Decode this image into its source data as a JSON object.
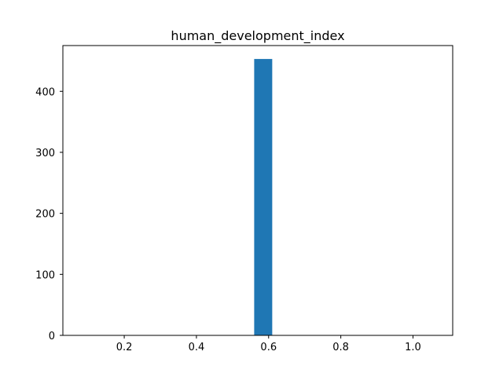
{
  "chart_data": {
    "type": "bar",
    "title": "human_development_index",
    "xlabel": "",
    "ylabel": "",
    "bins": [
      {
        "x0": 0.56,
        "x1": 0.61,
        "value": 453
      }
    ],
    "xlim": [
      0.03,
      1.11
    ],
    "ylim": [
      0,
      475
    ],
    "x_ticks": [
      0.2,
      0.4,
      0.6,
      0.8,
      1.0
    ],
    "x_tick_labels": [
      "0.2",
      "0.4",
      "0.6",
      "0.8",
      "1.0"
    ],
    "y_ticks": [
      0,
      100,
      200,
      300,
      400
    ],
    "y_tick_labels": [
      "0",
      "100",
      "200",
      "300",
      "400"
    ],
    "grid": false,
    "colors": {
      "bar": "#1f77b4",
      "axis": "#000000",
      "background": "#ffffff"
    }
  }
}
